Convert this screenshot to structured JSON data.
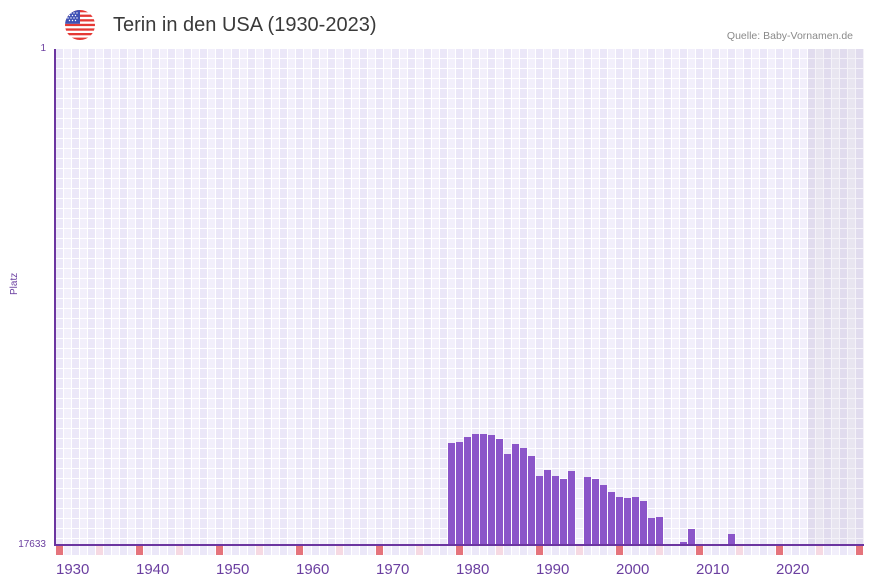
{
  "header": {
    "flag_icon": "us-flag-icon",
    "title": "Terin in den USA (1930-2023)",
    "source": "Quelle: Baby-Vornamen.de"
  },
  "colors": {
    "bar": "#8b55c9",
    "axis": "#6b35a0",
    "decade_marker": "#e5747c",
    "half_decade_marker": "#f6d9e2",
    "label": "#6b3fa0"
  },
  "chart_data": {
    "type": "bar",
    "title": "Terin in den USA (1930-2023)",
    "xlabel": "",
    "ylabel": "Platz",
    "y_inverted": true,
    "ylim": [
      1,
      17633
    ],
    "y_tick_labels": [
      "1",
      "17633"
    ],
    "x_range": [
      1930,
      2030
    ],
    "x_tick_labels": [
      "1930",
      "1940",
      "1950",
      "1960",
      "1970",
      "1980",
      "1990",
      "2000",
      "2010",
      "2020"
    ],
    "future_shaded_from": 2024,
    "grid": true,
    "legend": null,
    "categories": [
      1979,
      1980,
      1981,
      1982,
      1983,
      1984,
      1985,
      1986,
      1987,
      1988,
      1989,
      1990,
      1991,
      1992,
      1993,
      1994,
      1996,
      1997,
      1998,
      1999,
      2000,
      2001,
      2002,
      2003,
      2004,
      2005,
      2008,
      2009,
      2014
    ],
    "values": [
      14000,
      13960,
      13780,
      13690,
      13690,
      13720,
      13860,
      14390,
      14040,
      14180,
      14460,
      15170,
      14970,
      15170,
      15290,
      14990,
      15220,
      15290,
      15500,
      15750,
      15930,
      15960,
      15930,
      16070,
      16670,
      16640,
      17530,
      17060,
      17240
    ]
  }
}
